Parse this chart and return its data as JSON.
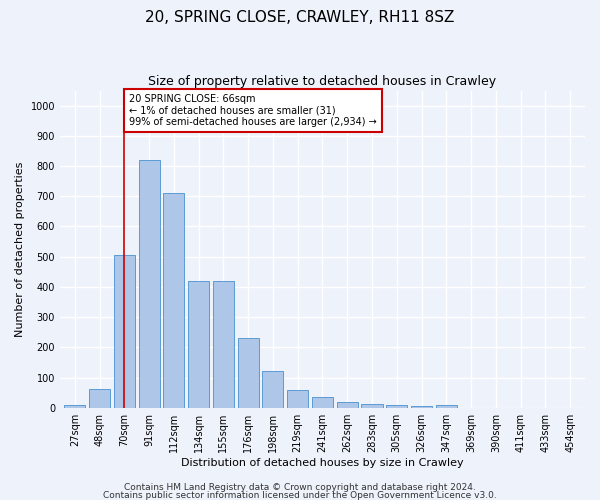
{
  "title1": "20, SPRING CLOSE, CRAWLEY, RH11 8SZ",
  "title2": "Size of property relative to detached houses in Crawley",
  "xlabel": "Distribution of detached houses by size in Crawley",
  "ylabel": "Number of detached properties",
  "categories": [
    "27sqm",
    "48sqm",
    "70sqm",
    "91sqm",
    "112sqm",
    "134sqm",
    "155sqm",
    "176sqm",
    "198sqm",
    "219sqm",
    "241sqm",
    "262sqm",
    "283sqm",
    "305sqm",
    "326sqm",
    "347sqm",
    "369sqm",
    "390sqm",
    "411sqm",
    "433sqm",
    "454sqm"
  ],
  "values": [
    8,
    62,
    505,
    820,
    710,
    420,
    420,
    230,
    120,
    57,
    35,
    18,
    12,
    10,
    7,
    10,
    0,
    0,
    0,
    0,
    0
  ],
  "bar_color": "#aec6e8",
  "bar_edge_color": "#5b9bd5",
  "annotation_line_x": "70sqm",
  "annotation_line_color": "#cc0000",
  "annotation_box_line1": "20 SPRING CLOSE: 66sqm",
  "annotation_box_line2": "← 1% of detached houses are smaller (31)",
  "annotation_box_line3": "99% of semi-detached houses are larger (2,934) →",
  "annotation_box_color": "#ffffff",
  "annotation_box_edge_color": "#cc0000",
  "ylim": [
    0,
    1050
  ],
  "yticks": [
    0,
    100,
    200,
    300,
    400,
    500,
    600,
    700,
    800,
    900,
    1000
  ],
  "footer1": "Contains HM Land Registry data © Crown copyright and database right 2024.",
  "footer2": "Contains public sector information licensed under the Open Government Licence v3.0.",
  "bg_color": "#eef2fb",
  "plot_bg_color": "#eef2fb",
  "grid_color": "#ffffff",
  "title1_fontsize": 11,
  "title2_fontsize": 9,
  "axis_label_fontsize": 8,
  "tick_fontsize": 7,
  "footer_fontsize": 6.5
}
